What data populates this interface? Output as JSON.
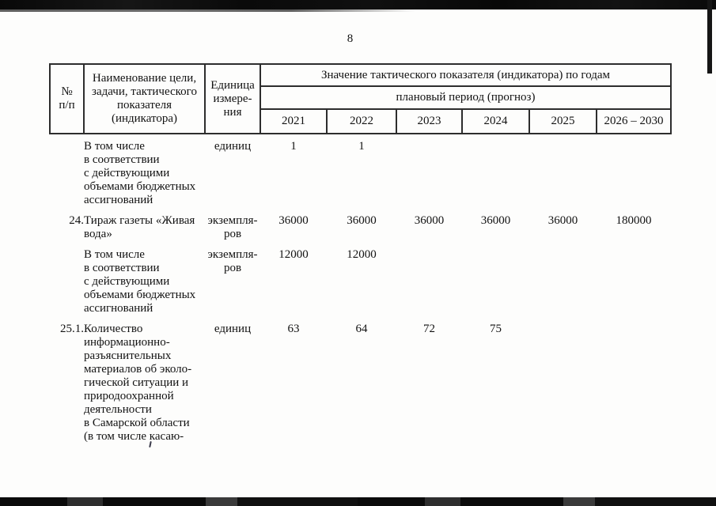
{
  "page": {
    "number": "8"
  },
  "table": {
    "headers": {
      "num": "№\nп/п",
      "name": "Наименование цели,\nзадачи, тактического\nпоказателя\n(индикатора)",
      "unit": "Единица\nизмере-\nния",
      "values_title": "Значение тактического показателя (индикатора) по годам",
      "period": "плановый период (прогноз)",
      "years": [
        "2021",
        "2022",
        "2023",
        "2024",
        "2025",
        "2026 – 2030"
      ]
    },
    "rows": [
      {
        "num": "",
        "name_lines": [
          "В том числе",
          "в соответствии",
          "с действующими",
          "объемами бюджетных",
          "ассигнований"
        ],
        "unit_lines": [
          "единиц"
        ],
        "values": [
          "1",
          "1",
          "",
          "",
          "",
          ""
        ]
      },
      {
        "num": "24.",
        "name_lines": [
          "Тираж газеты «Живая",
          "вода»"
        ],
        "unit_lines": [
          "экземпля-",
          "ров"
        ],
        "values": [
          "36000",
          "36000",
          "36000",
          "36000",
          "36000",
          "180000"
        ]
      },
      {
        "num": "",
        "name_lines": [
          "В том числе",
          "в соответствии",
          "с действующими",
          "объемами бюджетных",
          "ассигнований"
        ],
        "unit_lines": [
          "экземпля-",
          "ров"
        ],
        "values": [
          "12000",
          "12000",
          "",
          "",
          "",
          ""
        ]
      },
      {
        "num": "25.1.",
        "name_lines": [
          "Количество",
          "информационно-",
          "разъяснительных",
          "материалов об эколо-",
          "гической ситуации и",
          "природоохранной",
          "деятельности",
          "в Самарской области",
          "(в том числе касаю-"
        ],
        "unit_lines": [
          "единиц"
        ],
        "values": [
          "63",
          "64",
          "72",
          "75",
          "",
          ""
        ]
      }
    ]
  }
}
